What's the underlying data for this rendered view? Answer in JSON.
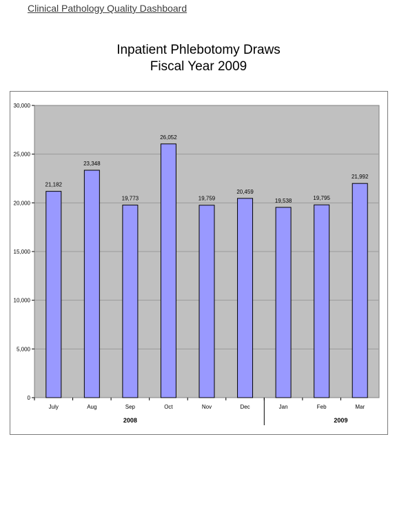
{
  "header": {
    "link_text": "Clinical Pathology Quality Dashboard"
  },
  "chart_data": {
    "type": "bar",
    "title": [
      "Inpatient Phlebotomy Draws",
      "Fiscal Year 2009"
    ],
    "categories": [
      "July",
      "Aug",
      "Sep",
      "Oct",
      "Nov",
      "Dec",
      "Jan",
      "Feb",
      "Mar"
    ],
    "values": [
      21182,
      23348,
      19773,
      26052,
      19759,
      20459,
      19538,
      19795,
      21992
    ],
    "data_labels": [
      "21,182",
      "23,348",
      "19,773",
      "26,052",
      "19,759",
      "20,459",
      "19,538",
      "19,795",
      "21,992"
    ],
    "year_groups": [
      {
        "label": "2008",
        "from": 0,
        "to": 5
      },
      {
        "label": "2009",
        "from": 6,
        "to": 8
      }
    ],
    "ylim": [
      0,
      30000
    ],
    "yticks": [
      0,
      5000,
      10000,
      15000,
      20000,
      25000,
      30000
    ],
    "ytick_labels": [
      "0",
      "5,000",
      "10,000",
      "15,000",
      "20,000",
      "25,000",
      "30,000"
    ],
    "grid": true,
    "legend": "none",
    "colors": {
      "bar": "#9999ff",
      "plot_bg": "#c0c0c0",
      "grid": "#9a9a9a",
      "bar_edge": "#000000"
    }
  }
}
